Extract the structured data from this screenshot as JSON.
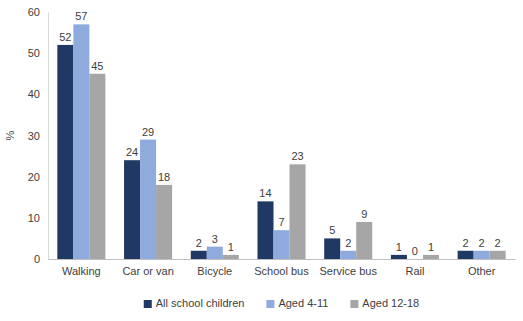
{
  "chart_data": {
    "type": "bar",
    "y_label": "%",
    "categories": [
      "Walking",
      "Car or van",
      "Bicycle",
      "School bus",
      "Service bus",
      "Rail",
      "Other"
    ],
    "series": [
      {
        "name": "All school children",
        "color": "#1f3864",
        "values": [
          52,
          24,
          2,
          14,
          5,
          1,
          2
        ]
      },
      {
        "name": "Aged 4-11",
        "color": "#8faadc",
        "values": [
          57,
          29,
          3,
          7,
          2,
          0,
          2
        ]
      },
      {
        "name": "Aged 12-18",
        "color": "#a6a6a6",
        "values": [
          45,
          18,
          1,
          23,
          9,
          1,
          2
        ]
      }
    ],
    "ylim": [
      0,
      60
    ],
    "yticks": [
      0,
      10,
      20,
      30,
      40,
      50,
      60
    ],
    "grid": false,
    "legend": "bottom",
    "data_labels": true
  }
}
